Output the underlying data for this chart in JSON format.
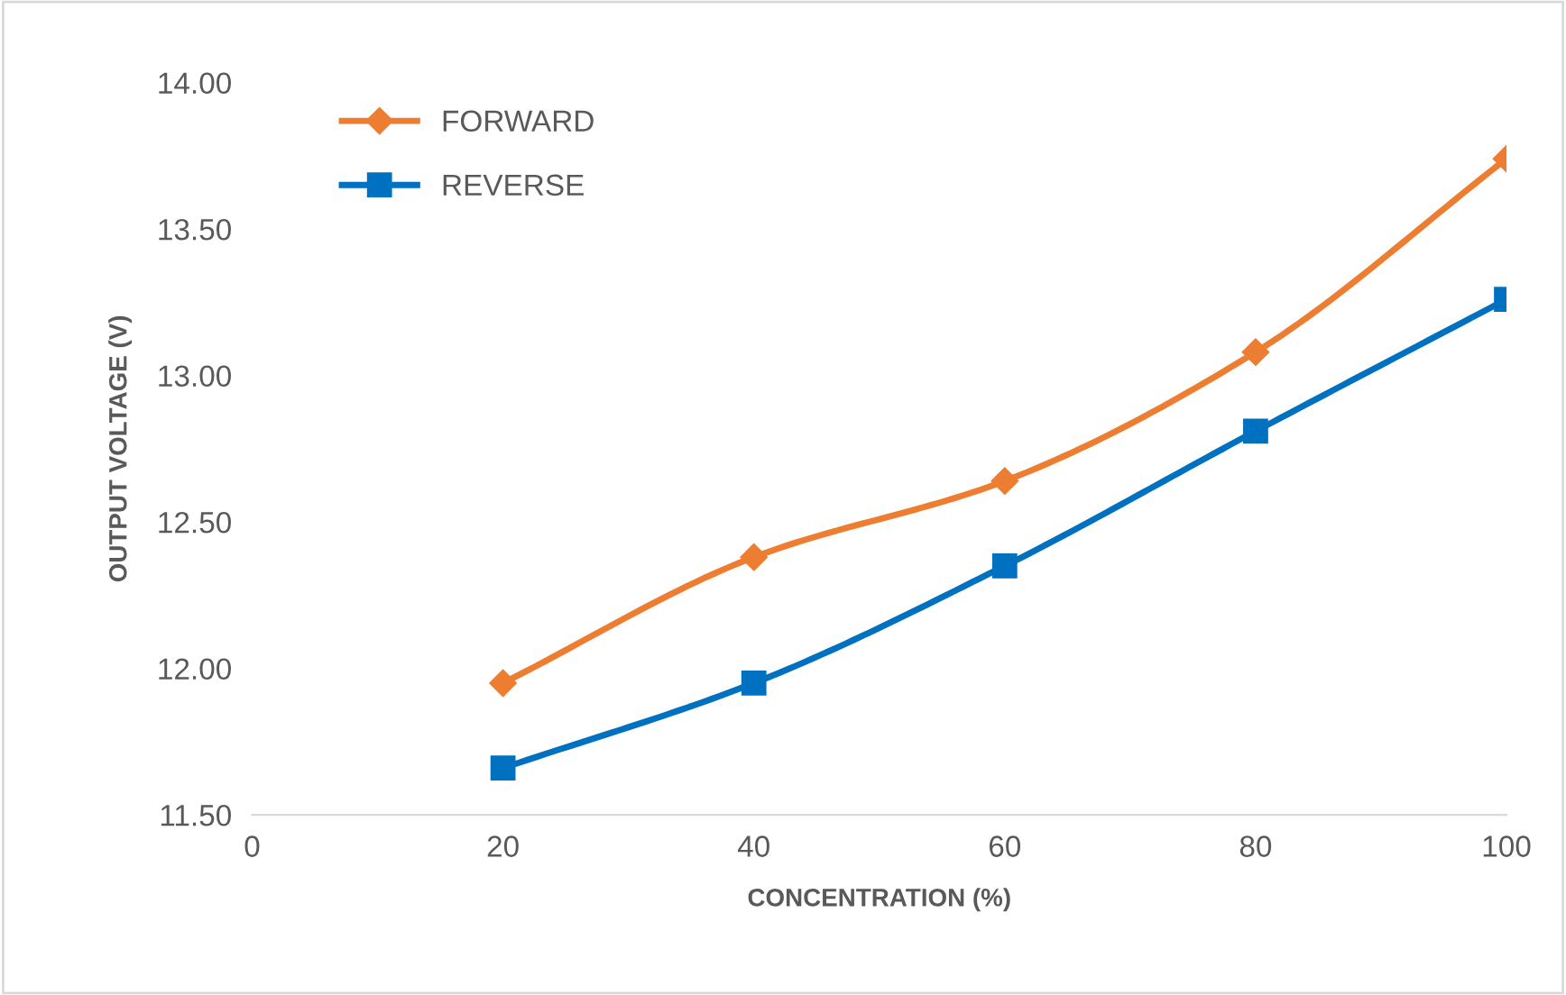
{
  "chart_data": {
    "type": "line",
    "xlabel": "CONCENTRATION (%)",
    "ylabel": "OUTPUT VOLTAGE (V)",
    "x": [
      20,
      40,
      60,
      80,
      100
    ],
    "series": [
      {
        "name": "FORWARD",
        "color": "#ed7d31",
        "marker": "diamond",
        "values": [
          11.95,
          12.38,
          12.64,
          13.08,
          13.74
        ]
      },
      {
        "name": "REVERSE",
        "color": "#0070c0",
        "marker": "square",
        "values": [
          11.66,
          11.95,
          12.35,
          12.81,
          13.26
        ]
      }
    ],
    "xlim": [
      0,
      100
    ],
    "xticks": [
      0,
      20,
      40,
      60,
      80,
      100
    ],
    "ylim": [
      11.5,
      14.0
    ],
    "yticks": [
      {
        "value": 11.5,
        "label": "11.50"
      },
      {
        "value": 12.0,
        "label": "12.00"
      },
      {
        "value": 12.5,
        "label": "12.50"
      },
      {
        "value": 13.0,
        "label": "13.00"
      },
      {
        "value": 13.5,
        "label": "13.50"
      },
      {
        "value": 14.0,
        "label": "14.00"
      }
    ],
    "grid": false,
    "legend": "top left",
    "line_style": "solid"
  }
}
